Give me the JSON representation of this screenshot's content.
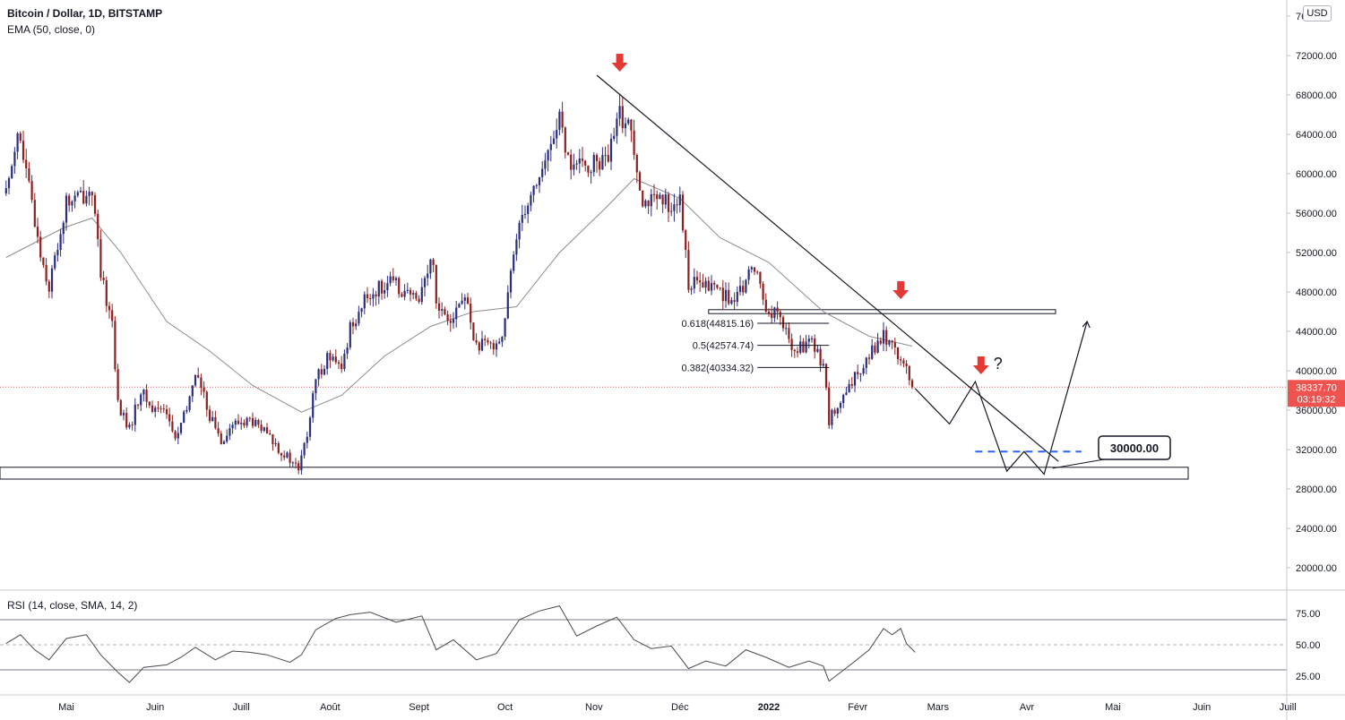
{
  "header": {
    "symbol_line": "Bitcoin / Dollar, 1D, BITSTAMP",
    "ema_line": "EMA (50, close, 0)",
    "currency_button": "USD"
  },
  "rsi_panel": {
    "title": "RSI (14, close, SMA, 14, 2)"
  },
  "colors": {
    "up": "#2a2e7c",
    "down": "#8c1f1f",
    "ema": "#8c8c8c",
    "rsi": "#4a4a4a",
    "arrow": "#e53935",
    "price_label_bg": "#ef5350",
    "dashed_line": "#2962ff",
    "grid_border": "#e0e3eb"
  },
  "chart_data": [
    {
      "type": "candlestick",
      "title": "Bitcoin / Dollar, 1D, BITSTAMP",
      "y_axis": {
        "scale": "linear",
        "range": [
          16000,
          76000
        ],
        "ticks": [
          "20000.00",
          "24000.00",
          "28000.00",
          "32000.00",
          "36000.00",
          "40000.00",
          "44000.00",
          "48000.00",
          "52000.00",
          "56000.00",
          "60000.00",
          "64000.00",
          "68000.00",
          "72000.00",
          "76000.00"
        ],
        "top_tick_partial": "76"
      },
      "x_axis": {
        "ticks": [
          "Mai",
          "Juin",
          "Juill",
          "Août",
          "Sept",
          "Oct",
          "Nov",
          "Déc",
          "2022",
          "Févr",
          "Mars",
          "Avr",
          "Mai",
          "Juin",
          "Juill"
        ],
        "bold_tick": "2022"
      },
      "close_points": [
        [
          "2021-04-10",
          58000
        ],
        [
          "2021-04-14",
          64500
        ],
        [
          "2021-04-18",
          58500
        ],
        [
          "2021-04-22",
          52000
        ],
        [
          "2021-04-25",
          48500
        ],
        [
          "2021-05-01",
          57000
        ],
        [
          "2021-05-08",
          58000
        ],
        [
          "2021-05-10",
          58500
        ],
        [
          "2021-05-13",
          49500
        ],
        [
          "2021-05-17",
          45000
        ],
        [
          "2021-05-19",
          36500
        ],
        [
          "2021-05-23",
          34000
        ],
        [
          "2021-05-27",
          38000
        ],
        [
          "2021-05-31",
          36000
        ],
        [
          "2021-06-04",
          36500
        ],
        [
          "2021-06-08",
          33000
        ],
        [
          "2021-06-12",
          36000
        ],
        [
          "2021-06-15",
          40000
        ],
        [
          "2021-06-20",
          35500
        ],
        [
          "2021-06-24",
          33000
        ],
        [
          "2021-06-28",
          34500
        ],
        [
          "2021-07-04",
          35000
        ],
        [
          "2021-07-10",
          33500
        ],
        [
          "2021-07-16",
          31500
        ],
        [
          "2021-07-21",
          30000
        ],
        [
          "2021-07-24",
          33500
        ],
        [
          "2021-07-27",
          39000
        ],
        [
          "2021-07-31",
          41500
        ],
        [
          "2021-08-05",
          40000
        ],
        [
          "2021-08-08",
          44500
        ],
        [
          "2021-08-14",
          47500
        ],
        [
          "2021-08-21",
          49000
        ],
        [
          "2021-08-25",
          48500
        ],
        [
          "2021-08-31",
          47000
        ],
        [
          "2021-09-06",
          51500
        ],
        [
          "2021-09-07",
          46800
        ],
        [
          "2021-09-12",
          45500
        ],
        [
          "2021-09-17",
          47500
        ],
        [
          "2021-09-21",
          42500
        ],
        [
          "2021-09-25",
          42500
        ],
        [
          "2021-09-30",
          43500
        ],
        [
          "2021-10-06",
          55500
        ],
        [
          "2021-10-15",
          61000
        ],
        [
          "2021-10-20",
          66000
        ],
        [
          "2021-10-22",
          61500
        ],
        [
          "2021-10-28",
          60500
        ],
        [
          "2021-11-01",
          61000
        ],
        [
          "2021-11-06",
          61500
        ],
        [
          "2021-11-10",
          66000
        ],
        [
          "2021-11-14",
          64500
        ],
        [
          "2021-11-18",
          57500
        ],
        [
          "2021-11-24",
          57000
        ],
        [
          "2021-11-28",
          57000
        ],
        [
          "2021-12-01",
          57000
        ],
        [
          "2021-12-04",
          49000
        ],
        [
          "2021-12-09",
          48500
        ],
        [
          "2021-12-14",
          48500
        ],
        [
          "2021-12-20",
          46700
        ],
        [
          "2021-12-27",
          50800
        ],
        [
          "2021-12-31",
          46200
        ],
        [
          "2022-01-04",
          45800
        ],
        [
          "2022-01-10",
          41800
        ],
        [
          "2022-01-15",
          43100
        ],
        [
          "2022-01-20",
          40700
        ],
        [
          "2022-01-22",
          35000
        ],
        [
          "2022-01-28",
          37500
        ],
        [
          "2022-02-04",
          41500
        ],
        [
          "2022-02-10",
          43500
        ],
        [
          "2022-02-14",
          42500
        ],
        [
          "2022-02-17",
          40500
        ],
        [
          "2022-02-20",
          38337.7
        ]
      ],
      "ema_50_points": [
        [
          "2021-04-10",
          51500
        ],
        [
          "2021-04-30",
          54500
        ],
        [
          "2021-05-10",
          55500
        ],
        [
          "2021-05-20",
          52000
        ],
        [
          "2021-06-05",
          45000
        ],
        [
          "2021-06-20",
          42000
        ],
        [
          "2021-07-05",
          38500
        ],
        [
          "2021-07-22",
          35800
        ],
        [
          "2021-08-05",
          37500
        ],
        [
          "2021-08-20",
          41500
        ],
        [
          "2021-09-05",
          44500
        ],
        [
          "2021-09-20",
          46000
        ],
        [
          "2021-10-05",
          46500
        ],
        [
          "2021-10-20",
          52000
        ],
        [
          "2021-11-05",
          56500
        ],
        [
          "2021-11-15",
          59500
        ],
        [
          "2021-12-01",
          57500
        ],
        [
          "2021-12-15",
          53500
        ],
        [
          "2022-01-01",
          51000
        ],
        [
          "2022-01-20",
          46000
        ],
        [
          "2022-02-05",
          43500
        ],
        [
          "2022-02-20",
          42500
        ]
      ],
      "current_price": {
        "value": 38337.7,
        "label": "38337.70",
        "countdown": "03:19:32"
      },
      "support_zone": [
        29000,
        30200
      ],
      "resistance_zone": [
        45800,
        46200
      ],
      "fibonacci": [
        {
          "ratio": "0.618",
          "price": 44815.16,
          "label": "0.618(44815.16)"
        },
        {
          "ratio": "0.5",
          "price": 42574.74,
          "label": "0.5(42574.74)"
        },
        {
          "ratio": "0.382",
          "price": 40334.32,
          "label": "0.382(40334.32)"
        }
      ],
      "price_callout": "30000.00",
      "question_mark": "?",
      "projection_path": [
        [
          "2022-02-21",
          38200
        ],
        [
          "2022-03-05",
          34600
        ],
        [
          "2022-03-14",
          38900
        ],
        [
          "2022-03-25",
          29800
        ],
        [
          "2022-03-31",
          31800
        ],
        [
          "2022-04-07",
          29500
        ],
        [
          "2022-04-22",
          45000
        ]
      ]
    },
    {
      "type": "line",
      "title": "RSI (14, close, SMA, 14, 2)",
      "y_axis": {
        "ticks": [
          "75.00",
          "50.00",
          "25.00"
        ],
        "bands": [
          70,
          30
        ],
        "mid": 50,
        "range": [
          18,
          87
        ]
      },
      "points": [
        [
          "2021-04-10",
          51
        ],
        [
          "2021-04-15",
          58
        ],
        [
          "2021-04-20",
          46
        ],
        [
          "2021-04-25",
          38
        ],
        [
          "2021-05-01",
          55
        ],
        [
          "2021-05-08",
          58
        ],
        [
          "2021-05-13",
          42
        ],
        [
          "2021-05-19",
          28
        ],
        [
          "2021-05-23",
          20
        ],
        [
          "2021-05-28",
          32
        ],
        [
          "2021-06-05",
          34
        ],
        [
          "2021-06-10",
          40
        ],
        [
          "2021-06-15",
          48
        ],
        [
          "2021-06-22",
          38
        ],
        [
          "2021-06-28",
          45
        ],
        [
          "2021-07-04",
          44
        ],
        [
          "2021-07-10",
          42
        ],
        [
          "2021-07-18",
          36
        ],
        [
          "2021-07-22",
          42
        ],
        [
          "2021-07-27",
          62
        ],
        [
          "2021-08-03",
          71
        ],
        [
          "2021-08-08",
          74
        ],
        [
          "2021-08-15",
          76
        ],
        [
          "2021-08-24",
          68
        ],
        [
          "2021-09-02",
          73
        ],
        [
          "2021-09-07",
          46
        ],
        [
          "2021-09-13",
          54
        ],
        [
          "2021-09-21",
          38
        ],
        [
          "2021-09-28",
          43
        ],
        [
          "2021-10-06",
          70
        ],
        [
          "2021-10-13",
          77
        ],
        [
          "2021-10-20",
          81
        ],
        [
          "2021-10-26",
          57
        ],
        [
          "2021-11-02",
          65
        ],
        [
          "2021-11-09",
          72
        ],
        [
          "2021-11-15",
          54
        ],
        [
          "2021-11-21",
          47
        ],
        [
          "2021-11-28",
          49
        ],
        [
          "2021-12-04",
          31
        ],
        [
          "2021-12-10",
          37
        ],
        [
          "2021-12-17",
          33
        ],
        [
          "2021-12-24",
          46
        ],
        [
          "2021-12-31",
          40
        ],
        [
          "2022-01-08",
          32
        ],
        [
          "2022-01-15",
          37
        ],
        [
          "2022-01-20",
          33
        ],
        [
          "2022-01-22",
          21
        ],
        [
          "2022-01-30",
          35
        ],
        [
          "2022-02-05",
          46
        ],
        [
          "2022-02-10",
          63
        ],
        [
          "2022-02-13",
          58
        ],
        [
          "2022-02-16",
          63
        ],
        [
          "2022-02-18",
          51
        ],
        [
          "2022-02-21",
          44
        ]
      ]
    }
  ]
}
